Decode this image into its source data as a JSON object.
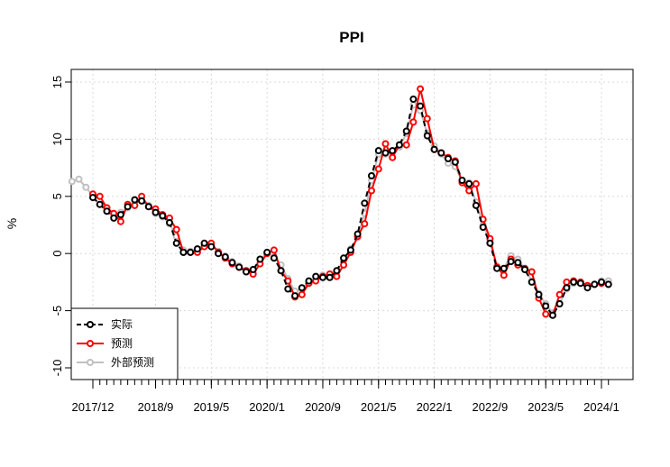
{
  "chart_data": {
    "type": "line",
    "title": "PPI",
    "xlabel": "",
    "ylabel": "%",
    "ylim": [
      -11,
      16
    ],
    "y_ticks": [
      -10,
      -5,
      0,
      5,
      10,
      15
    ],
    "x_tick_labels": [
      "2017/12",
      "2018/9",
      "2019/5",
      "2020/1",
      "2020/9",
      "2021/5",
      "2022/1",
      "2022/9",
      "2023/5",
      "2024/1"
    ],
    "grid": true,
    "legend_position": "bottom-left",
    "series": [
      {
        "name": "实际",
        "color": "#000000",
        "line_style": "dashed",
        "x": [
          "2017/12",
          "2018/1",
          "2018/2",
          "2018/3",
          "2018/4",
          "2018/5",
          "2018/6",
          "2018/7",
          "2018/8",
          "2018/9",
          "2018/10",
          "2018/11",
          "2018/12",
          "2019/1",
          "2019/2",
          "2019/3",
          "2019/4",
          "2019/5",
          "2019/6",
          "2019/7",
          "2019/8",
          "2019/9",
          "2019/10",
          "2019/11",
          "2019/12",
          "2020/1",
          "2020/2",
          "2020/3",
          "2020/4",
          "2020/5",
          "2020/6",
          "2020/7",
          "2020/8",
          "2020/9",
          "2020/10",
          "2020/11",
          "2020/12",
          "2021/1",
          "2021/2",
          "2021/3",
          "2021/4",
          "2021/5",
          "2021/6",
          "2021/7",
          "2021/8",
          "2021/9",
          "2021/10",
          "2021/11",
          "2021/12",
          "2022/1",
          "2022/2",
          "2022/3",
          "2022/4",
          "2022/5",
          "2022/6",
          "2022/7",
          "2022/8",
          "2022/9",
          "2022/10",
          "2022/11",
          "2022/12",
          "2023/1",
          "2023/2",
          "2023/3",
          "2023/4",
          "2023/5",
          "2023/6",
          "2023/7",
          "2023/8",
          "2023/9",
          "2023/10",
          "2023/11",
          "2023/12",
          "2024/1",
          "2024/2"
        ],
        "values": [
          4.9,
          4.3,
          3.7,
          3.1,
          3.4,
          4.1,
          4.7,
          4.6,
          4.1,
          3.6,
          3.3,
          2.7,
          0.9,
          0.1,
          0.1,
          0.4,
          0.9,
          0.6,
          0,
          -0.3,
          -0.8,
          -1.2,
          -1.6,
          -1.4,
          -0.5,
          0.1,
          -0.4,
          -1.5,
          -3.1,
          -3.7,
          -3,
          -2.4,
          -2,
          -2.1,
          -2.1,
          -1.5,
          -0.4,
          0.3,
          1.7,
          4.4,
          6.8,
          9,
          8.8,
          9,
          9.5,
          10.7,
          13.5,
          12.9,
          10.3,
          9.1,
          8.8,
          8.3,
          8,
          6.4,
          6.1,
          4.2,
          2.3,
          0.9,
          -1.3,
          -1.3,
          -0.7,
          -0.8,
          -1.4,
          -2.5,
          -3.6,
          -4.6,
          -5.4,
          -4.4,
          -3,
          -2.5,
          -2.6,
          -3,
          -2.7,
          -2.5,
          -2.7
        ]
      },
      {
        "name": "预测",
        "color": "#ff0000",
        "line_style": "solid",
        "x": [
          "2017/12",
          "2018/1",
          "2018/2",
          "2018/3",
          "2018/4",
          "2018/5",
          "2018/6",
          "2018/7",
          "2018/8",
          "2018/9",
          "2018/10",
          "2018/11",
          "2018/12",
          "2019/1",
          "2019/2",
          "2019/3",
          "2019/4",
          "2019/5",
          "2019/6",
          "2019/7",
          "2019/8",
          "2019/9",
          "2019/10",
          "2019/11",
          "2019/12",
          "2020/1",
          "2020/2",
          "2020/3",
          "2020/4",
          "2020/5",
          "2020/6",
          "2020/7",
          "2020/8",
          "2020/9",
          "2020/10",
          "2020/11",
          "2020/12",
          "2021/1",
          "2021/2",
          "2021/3",
          "2021/4",
          "2021/5",
          "2021/6",
          "2021/7",
          "2021/8",
          "2021/9",
          "2021/10",
          "2021/11",
          "2021/12",
          "2022/1",
          "2022/2",
          "2022/3",
          "2022/4",
          "2022/5",
          "2022/6",
          "2022/7",
          "2022/8",
          "2022/9",
          "2022/10",
          "2022/11",
          "2022/12",
          "2023/1",
          "2023/2",
          "2023/3",
          "2023/4",
          "2023/5",
          "2023/6",
          "2023/7",
          "2023/8",
          "2023/9",
          "2023/10",
          "2023/11",
          "2023/12",
          "2024/1",
          "2024/2"
        ],
        "values": [
          5.2,
          5,
          4,
          3.5,
          2.8,
          4.3,
          4.2,
          5,
          4.1,
          3.9,
          3.4,
          3.1,
          2.1,
          0.1,
          0.1,
          0.1,
          0.6,
          0.9,
          0.1,
          -0.4,
          -0.9,
          -1.2,
          -1.5,
          -1.8,
          -0.9,
          0,
          0.3,
          -1.5,
          -2.4,
          -3.8,
          -3.6,
          -2.6,
          -2.4,
          -2,
          -1.8,
          -2,
          -1,
          0.1,
          1.5,
          2.6,
          5.5,
          7.4,
          9.6,
          8.4,
          9.5,
          9.5,
          11.5,
          14.4,
          11.8,
          9.1,
          8.8,
          8.4,
          8.1,
          6.2,
          5.5,
          6.1,
          3,
          1.3,
          -1.2,
          -1.9,
          -0.5,
          -1,
          -1.3,
          -1.6,
          -3.9,
          -5.3,
          -5.4,
          -3.6,
          -2.5,
          -2.4,
          -2.5,
          -2.8,
          -2.7,
          -2.6,
          -2.7
        ]
      },
      {
        "name": "外部预测",
        "color": "#c0c0c0",
        "line_style": "solid",
        "x": [
          "2017/9",
          "2017/10",
          "2017/11",
          "2017/12",
          "2018/1",
          "2018/2",
          "2018/3",
          "2018/4",
          "2018/5",
          "2018/6",
          "2018/7",
          "2018/8",
          "2018/9",
          "2018/10",
          "2018/11",
          "2018/12",
          "2019/1",
          "2019/2",
          "2019/3",
          "2019/4",
          "2019/5",
          "2019/6",
          "2019/7",
          "2019/8",
          "2019/9",
          "2019/10",
          "2019/11",
          "2019/12",
          "2020/1",
          "2020/2",
          "2020/3",
          "2020/4",
          "2020/5",
          "2020/6",
          "2020/7",
          "2020/8",
          "2020/9",
          "2020/10",
          "2020/11",
          "2020/12",
          "2021/1",
          "2021/2",
          "2021/3",
          "2021/4",
          "2021/5",
          "2021/6",
          "2021/7",
          "2021/8",
          "2021/9",
          "2021/10",
          "2021/11",
          "2021/12",
          "2022/1",
          "2022/2",
          "2022/3",
          "2022/4",
          "2022/5",
          "2022/6",
          "2022/7",
          "2022/8",
          "2022/9",
          "2022/10",
          "2022/11",
          "2022/12",
          "2023/1",
          "2023/2",
          "2023/3",
          "2023/4",
          "2023/5",
          "2023/6",
          "2023/7",
          "2023/8",
          "2023/9",
          "2023/10",
          "2023/11",
          "2023/12",
          "2024/1",
          "2024/2"
        ],
        "values": [
          6.3,
          6.5,
          5.8,
          5,
          4.3,
          3.7,
          3.2,
          3.6,
          4,
          4.6,
          4.7,
          4.2,
          3.5,
          3.2,
          2.6,
          1.5,
          0.3,
          0.2,
          0.4,
          0.8,
          0.7,
          0.2,
          -0.2,
          -0.7,
          -1.1,
          -1.5,
          -1.5,
          -0.6,
          0.1,
          -0.3,
          -1,
          -2.2,
          -3.3,
          -3.1,
          -2.5,
          -2.1,
          -1.9,
          -2.1,
          -1.6,
          -0.6,
          0.4,
          1.4,
          3.5,
          6.4,
          8.7,
          8.7,
          8.9,
          9.3,
          10.5,
          13,
          12.5,
          10.5,
          9.4,
          8.7,
          7.9,
          7.6,
          6.3,
          6.2,
          4.5,
          2.5,
          1,
          -1.1,
          -1.3,
          -0.2,
          -0.5,
          -1.3,
          -2.4,
          -3.5,
          -4.4,
          -5.2,
          -4.4,
          -3.1,
          -2.6,
          -2.5,
          -2.8,
          -2.7,
          -2.4,
          -2.4
        ]
      }
    ]
  }
}
